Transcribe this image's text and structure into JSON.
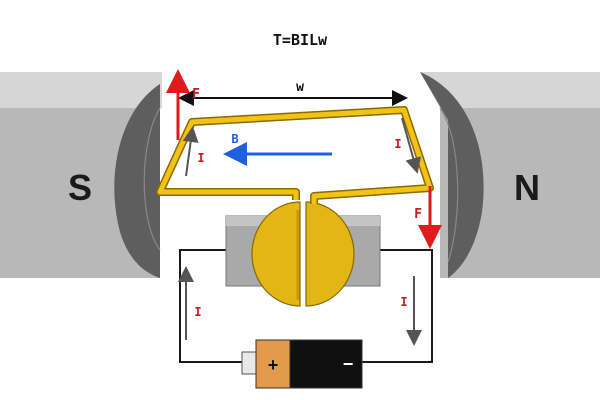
{
  "equation": "T=BILw",
  "labels": {
    "width": "w",
    "field": "B",
    "force": "F",
    "current": "I",
    "south_pole": "S",
    "north_pole": "N",
    "battery_positive": "+",
    "battery_negative": "−"
  },
  "colors": {
    "coil": "#f2c316",
    "coil_outline": "#8a6a00",
    "force_arrow": "#e01b1b",
    "field_arrow": "#1f5fe0",
    "current_label": "#cc1a1a",
    "wire": "#1a1a1a",
    "magnet_face": "#b3b3b3",
    "magnet_top": "#d8d8d8",
    "pole_piece": "#5e5e5e",
    "battery_positive": "#e39a4a",
    "battery_negative": "#101010"
  }
}
